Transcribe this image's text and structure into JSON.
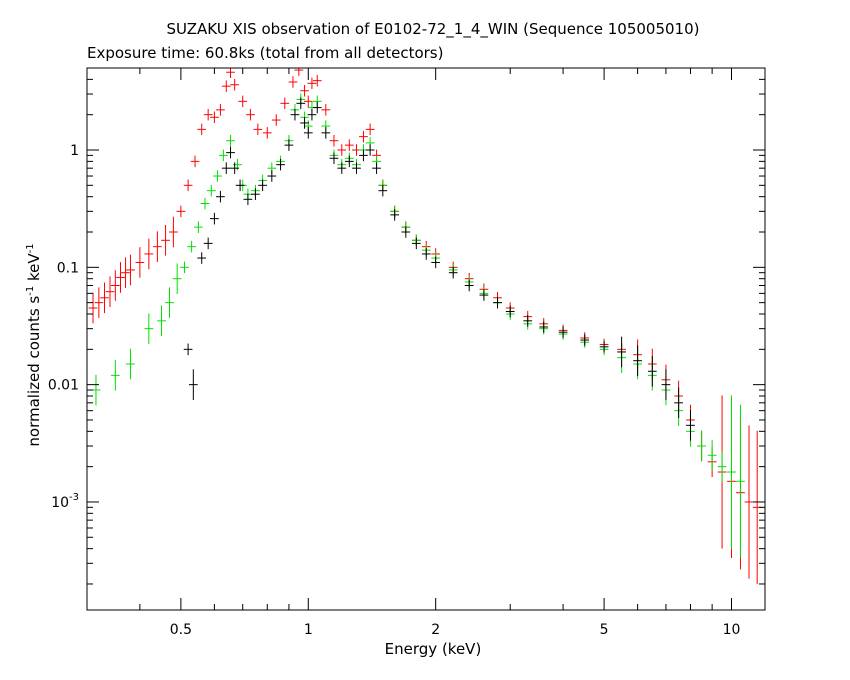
{
  "chart_data": {
    "type": "scatter",
    "title": "SUZAKU XIS observation of E0102-72_1_4_WIN (Sequence 105005010)",
    "subtitle": "Exposure time: 60.8ks (total from all detectors)",
    "xlabel": "Energy (keV)",
    "ylabel_parts": [
      "normalized counts s",
      "-1",
      " keV",
      "-1"
    ],
    "xscale": "log",
    "yscale": "log",
    "xlim": [
      0.3,
      12
    ],
    "ylim": [
      0.00012,
      5
    ],
    "xticks": [
      {
        "value": 0.5,
        "label": "0.5"
      },
      {
        "value": 1,
        "label": "1"
      },
      {
        "value": 2,
        "label": "2"
      },
      {
        "value": 5,
        "label": "5"
      },
      {
        "value": 10,
        "label": "10"
      }
    ],
    "yticks": [
      {
        "value": 0.001,
        "label": "10",
        "sup": "-3"
      },
      {
        "value": 0.01,
        "label": "0.01"
      },
      {
        "value": 0.1,
        "label": "0.1"
      },
      {
        "value": 1,
        "label": "1"
      }
    ],
    "grid": false,
    "legend": "none",
    "series": [
      {
        "color": "#ff0000",
        "points": [
          [
            0.31,
            0.045
          ],
          [
            0.32,
            0.05
          ],
          [
            0.33,
            0.055
          ],
          [
            0.34,
            0.062
          ],
          [
            0.35,
            0.07
          ],
          [
            0.36,
            0.082
          ],
          [
            0.37,
            0.09
          ],
          [
            0.38,
            0.095
          ],
          [
            0.4,
            0.11
          ],
          [
            0.42,
            0.13
          ],
          [
            0.44,
            0.15
          ],
          [
            0.46,
            0.17
          ],
          [
            0.48,
            0.2
          ],
          [
            0.5,
            0.3
          ],
          [
            0.52,
            0.5
          ],
          [
            0.54,
            0.8
          ],
          [
            0.56,
            1.5
          ],
          [
            0.58,
            2.0
          ],
          [
            0.6,
            1.9
          ],
          [
            0.62,
            2.2
          ],
          [
            0.64,
            3.5
          ],
          [
            0.655,
            4.6
          ],
          [
            0.67,
            3.6
          ],
          [
            0.7,
            2.6
          ],
          [
            0.73,
            2.0
          ],
          [
            0.76,
            1.5
          ],
          [
            0.8,
            1.4
          ],
          [
            0.84,
            1.8
          ],
          [
            0.88,
            2.5
          ],
          [
            0.92,
            3.8
          ],
          [
            0.95,
            4.8
          ],
          [
            0.98,
            3.2
          ],
          [
            1.0,
            2.6
          ],
          [
            1.02,
            3.7
          ],
          [
            1.05,
            3.9
          ],
          [
            1.1,
            2.2
          ],
          [
            1.15,
            1.2
          ],
          [
            1.2,
            1.0
          ],
          [
            1.25,
            1.1
          ],
          [
            1.3,
            1.0
          ],
          [
            1.35,
            1.3
          ],
          [
            1.4,
            1.5
          ],
          [
            1.45,
            0.9
          ],
          [
            1.5,
            0.5
          ],
          [
            1.6,
            0.3
          ],
          [
            1.7,
            0.22
          ],
          [
            1.8,
            0.17
          ],
          [
            1.9,
            0.15
          ],
          [
            2.0,
            0.13
          ],
          [
            2.2,
            0.1
          ],
          [
            2.4,
            0.08
          ],
          [
            2.6,
            0.065
          ],
          [
            2.8,
            0.055
          ],
          [
            3.0,
            0.045
          ],
          [
            3.3,
            0.038
          ],
          [
            3.6,
            0.033
          ],
          [
            4.0,
            0.029
          ],
          [
            4.5,
            0.025
          ],
          [
            5.0,
            0.022
          ],
          [
            5.5,
            0.02
          ],
          [
            6.0,
            0.018
          ],
          [
            6.5,
            0.015
          ],
          [
            7.0,
            0.011
          ],
          [
            7.5,
            0.008
          ],
          [
            8.0,
            0.005
          ],
          [
            8.5,
            0.003
          ],
          [
            9.0,
            0.0022
          ],
          [
            9.5,
            0.0018
          ],
          [
            10.0,
            0.0015
          ],
          [
            10.5,
            0.0012
          ],
          [
            11.0,
            0.001
          ],
          [
            11.5,
            0.0009
          ]
        ]
      },
      {
        "color": "#00e000",
        "points": [
          [
            0.315,
            0.009
          ],
          [
            0.35,
            0.012
          ],
          [
            0.38,
            0.015
          ],
          [
            0.42,
            0.03
          ],
          [
            0.45,
            0.035
          ],
          [
            0.47,
            0.05
          ],
          [
            0.49,
            0.08
          ],
          [
            0.51,
            0.1
          ],
          [
            0.53,
            0.15
          ],
          [
            0.55,
            0.22
          ],
          [
            0.57,
            0.35
          ],
          [
            0.59,
            0.45
          ],
          [
            0.61,
            0.6
          ],
          [
            0.63,
            0.9
          ],
          [
            0.655,
            1.2
          ],
          [
            0.68,
            0.75
          ],
          [
            0.7,
            0.5
          ],
          [
            0.72,
            0.42
          ],
          [
            0.75,
            0.45
          ],
          [
            0.78,
            0.55
          ],
          [
            0.82,
            0.7
          ],
          [
            0.86,
            0.8
          ],
          [
            0.9,
            1.2
          ],
          [
            0.93,
            2.2
          ],
          [
            0.96,
            2.7
          ],
          [
            0.98,
            1.9
          ],
          [
            1.0,
            1.6
          ],
          [
            1.02,
            2.3
          ],
          [
            1.05,
            2.6
          ],
          [
            1.1,
            1.6
          ],
          [
            1.15,
            0.9
          ],
          [
            1.2,
            0.75
          ],
          [
            1.25,
            0.85
          ],
          [
            1.3,
            0.75
          ],
          [
            1.35,
            1.0
          ],
          [
            1.4,
            1.15
          ],
          [
            1.45,
            0.8
          ],
          [
            1.5,
            0.5
          ],
          [
            1.6,
            0.3
          ],
          [
            1.7,
            0.22
          ],
          [
            1.8,
            0.17
          ],
          [
            1.9,
            0.14
          ],
          [
            2.0,
            0.12
          ],
          [
            2.2,
            0.095
          ],
          [
            2.4,
            0.075
          ],
          [
            2.6,
            0.06
          ],
          [
            2.8,
            0.05
          ],
          [
            3.0,
            0.04
          ],
          [
            3.3,
            0.033
          ],
          [
            3.6,
            0.03
          ],
          [
            4.0,
            0.027
          ],
          [
            4.5,
            0.023
          ],
          [
            5.0,
            0.02
          ],
          [
            5.5,
            0.017
          ],
          [
            6.0,
            0.015
          ],
          [
            6.5,
            0.012
          ],
          [
            7.0,
            0.009
          ],
          [
            7.5,
            0.006
          ],
          [
            8.0,
            0.004
          ],
          [
            8.5,
            0.003
          ],
          [
            9.0,
            0.0025
          ],
          [
            9.5,
            0.002
          ],
          [
            10.0,
            0.0018
          ],
          [
            10.5,
            0.0015
          ]
        ]
      },
      {
        "color": "#000000",
        "points": [
          [
            0.52,
            0.02
          ],
          [
            0.535,
            0.01
          ],
          [
            0.56,
            0.12
          ],
          [
            0.58,
            0.16
          ],
          [
            0.6,
            0.26
          ],
          [
            0.62,
            0.4
          ],
          [
            0.64,
            0.7
          ],
          [
            0.655,
            0.95
          ],
          [
            0.67,
            0.7
          ],
          [
            0.69,
            0.5
          ],
          [
            0.72,
            0.38
          ],
          [
            0.75,
            0.42
          ],
          [
            0.78,
            0.5
          ],
          [
            0.82,
            0.6
          ],
          [
            0.86,
            0.75
          ],
          [
            0.9,
            1.1
          ],
          [
            0.93,
            2.0
          ],
          [
            0.96,
            2.5
          ],
          [
            0.98,
            1.7
          ],
          [
            1.0,
            1.4
          ],
          [
            1.02,
            2.0
          ],
          [
            1.05,
            2.3
          ],
          [
            1.1,
            1.4
          ],
          [
            1.15,
            0.85
          ],
          [
            1.2,
            0.7
          ],
          [
            1.25,
            0.8
          ],
          [
            1.3,
            0.7
          ],
          [
            1.35,
            0.9
          ],
          [
            1.4,
            1.0
          ],
          [
            1.45,
            0.7
          ],
          [
            1.5,
            0.45
          ],
          [
            1.6,
            0.28
          ],
          [
            1.7,
            0.2
          ],
          [
            1.8,
            0.16
          ],
          [
            1.9,
            0.13
          ],
          [
            2.0,
            0.11
          ],
          [
            2.2,
            0.09
          ],
          [
            2.4,
            0.07
          ],
          [
            2.6,
            0.058
          ],
          [
            2.8,
            0.05
          ],
          [
            3.0,
            0.042
          ],
          [
            3.3,
            0.035
          ],
          [
            3.6,
            0.031
          ],
          [
            4.0,
            0.028
          ],
          [
            4.5,
            0.024
          ],
          [
            5.0,
            0.021
          ],
          [
            5.5,
            0.019
          ],
          [
            6.0,
            0.016
          ],
          [
            6.5,
            0.013
          ],
          [
            7.0,
            0.01
          ],
          [
            7.5,
            0.007
          ],
          [
            8.0,
            0.0045
          ]
        ]
      }
    ]
  }
}
